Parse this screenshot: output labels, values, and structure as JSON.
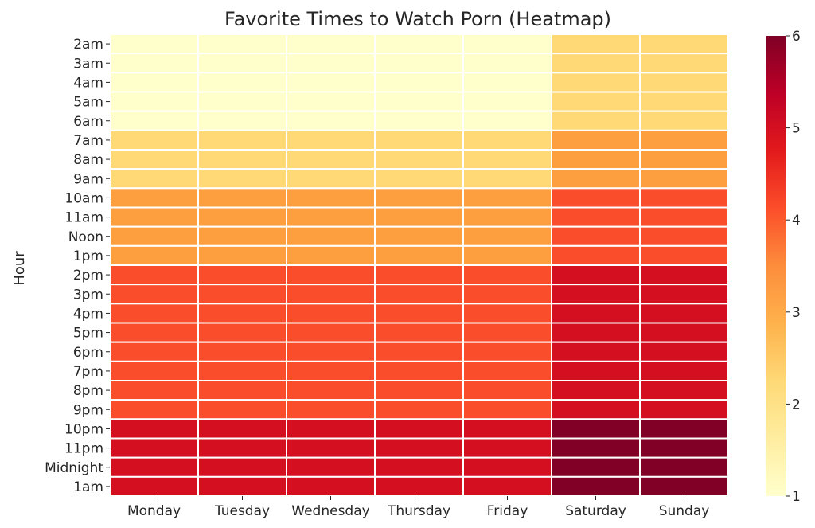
{
  "chart_data": {
    "type": "heatmap",
    "title": "Favorite Times to Watch Porn (Heatmap)",
    "xlabel": "",
    "ylabel": "Hour",
    "x_categories": [
      "Monday",
      "Tuesday",
      "Wednesday",
      "Thursday",
      "Friday",
      "Saturday",
      "Sunday"
    ],
    "y_categories": [
      "2am",
      "3am",
      "4am",
      "5am",
      "6am",
      "7am",
      "8am",
      "9am",
      "10am",
      "11am",
      "Noon",
      "1pm",
      "2pm",
      "3pm",
      "4pm",
      "5pm",
      "6pm",
      "7pm",
      "8pm",
      "9pm",
      "10pm",
      "11pm",
      "Midnight",
      "1am"
    ],
    "values": [
      [
        1,
        1,
        1,
        1,
        1,
        2,
        2
      ],
      [
        1,
        1,
        1,
        1,
        1,
        2,
        2
      ],
      [
        1,
        1,
        1,
        1,
        1,
        2,
        2
      ],
      [
        1,
        1,
        1,
        1,
        1,
        2,
        2
      ],
      [
        1,
        1,
        1,
        1,
        1,
        2,
        2
      ],
      [
        2,
        2,
        2,
        2,
        2,
        3,
        3
      ],
      [
        2,
        2,
        2,
        2,
        2,
        3,
        3
      ],
      [
        2,
        2,
        2,
        2,
        2,
        3,
        3
      ],
      [
        3,
        3,
        3,
        3,
        3,
        4,
        4
      ],
      [
        3,
        3,
        3,
        3,
        3,
        4,
        4
      ],
      [
        3,
        3,
        3,
        3,
        3,
        4,
        4
      ],
      [
        3,
        3,
        3,
        3,
        3,
        4,
        4
      ],
      [
        4,
        4,
        4,
        4,
        4,
        5,
        5
      ],
      [
        4,
        4,
        4,
        4,
        4,
        5,
        5
      ],
      [
        4,
        4,
        4,
        4,
        4,
        5,
        5
      ],
      [
        4,
        4,
        4,
        4,
        4,
        5,
        5
      ],
      [
        4,
        4,
        4,
        4,
        4,
        5,
        5
      ],
      [
        4,
        4,
        4,
        4,
        4,
        5,
        5
      ],
      [
        4,
        4,
        4,
        4,
        4,
        5,
        5
      ],
      [
        4,
        4,
        4,
        4,
        4,
        5,
        5
      ],
      [
        5,
        5,
        5,
        5,
        5,
        6,
        6
      ],
      [
        5,
        5,
        5,
        5,
        5,
        6,
        6
      ],
      [
        5,
        5,
        5,
        5,
        5,
        6,
        6
      ],
      [
        5,
        5,
        5,
        5,
        5,
        6,
        6
      ]
    ],
    "colorbar": {
      "min": 1,
      "max": 6,
      "ticks": [
        1,
        2,
        3,
        4,
        5,
        6
      ],
      "colormap": "YlOrRd"
    },
    "colors": {
      "1": "#ffffcc",
      "2": "#fed976",
      "3": "#fd9f3f",
      "4": "#f94d2c",
      "5": "#d41020",
      "6": "#800026"
    },
    "grid": true
  }
}
